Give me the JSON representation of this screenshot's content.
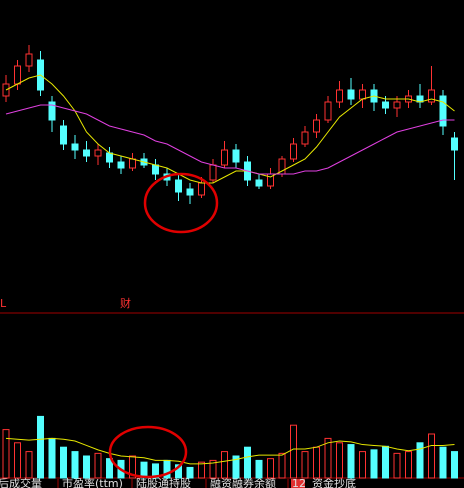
{
  "chart_data": {
    "type": "candlestick",
    "up_color": "#ff3232",
    "down_color": "#54ffff",
    "ylim": [
      0,
      100
    ],
    "candles": [
      {
        "open": 68,
        "close": 72,
        "high": 75,
        "low": 66
      },
      {
        "open": 72,
        "close": 78,
        "high": 80,
        "low": 70
      },
      {
        "open": 78,
        "close": 82,
        "high": 85,
        "low": 76
      },
      {
        "open": 80,
        "close": 70,
        "high": 83,
        "low": 68
      },
      {
        "open": 66,
        "close": 60,
        "high": 68,
        "low": 56
      },
      {
        "open": 58,
        "close": 52,
        "high": 60,
        "low": 50
      },
      {
        "open": 52,
        "close": 50,
        "high": 55,
        "low": 47
      },
      {
        "open": 50,
        "close": 48,
        "high": 53,
        "low": 46
      },
      {
        "open": 48,
        "close": 50,
        "high": 52,
        "low": 45
      },
      {
        "open": 49,
        "close": 46,
        "high": 51,
        "low": 44
      },
      {
        "open": 46,
        "close": 44,
        "high": 48,
        "low": 42
      },
      {
        "open": 44,
        "close": 47,
        "high": 49,
        "low": 43
      },
      {
        "open": 47,
        "close": 45,
        "high": 49,
        "low": 44
      },
      {
        "open": 45,
        "close": 42,
        "high": 47,
        "low": 40
      },
      {
        "open": 42,
        "close": 40,
        "high": 44,
        "low": 38
      },
      {
        "open": 40,
        "close": 36,
        "high": 42,
        "low": 33
      },
      {
        "open": 37,
        "close": 35,
        "high": 39,
        "low": 32
      },
      {
        "open": 35,
        "close": 39,
        "high": 41,
        "low": 34
      },
      {
        "open": 40,
        "close": 45,
        "high": 47,
        "low": 39
      },
      {
        "open": 45,
        "close": 50,
        "high": 53,
        "low": 44
      },
      {
        "open": 50,
        "close": 46,
        "high": 52,
        "low": 44
      },
      {
        "open": 46,
        "close": 40,
        "high": 48,
        "low": 38
      },
      {
        "open": 40,
        "close": 38,
        "high": 42,
        "low": 37
      },
      {
        "open": 38,
        "close": 42,
        "high": 44,
        "low": 37
      },
      {
        "open": 42,
        "close": 47,
        "high": 48,
        "low": 41
      },
      {
        "open": 47,
        "close": 52,
        "high": 54,
        "low": 46
      },
      {
        "open": 52,
        "close": 56,
        "high": 58,
        "low": 51
      },
      {
        "open": 56,
        "close": 60,
        "high": 62,
        "low": 54
      },
      {
        "open": 60,
        "close": 66,
        "high": 68,
        "low": 59
      },
      {
        "open": 66,
        "close": 70,
        "high": 73,
        "low": 64
      },
      {
        "open": 70,
        "close": 67,
        "high": 74,
        "low": 65
      },
      {
        "open": 67,
        "close": 70,
        "high": 72,
        "low": 64
      },
      {
        "open": 70,
        "close": 66,
        "high": 72,
        "low": 63
      },
      {
        "open": 66,
        "close": 64,
        "high": 68,
        "low": 62
      },
      {
        "open": 64,
        "close": 66,
        "high": 68,
        "low": 61
      },
      {
        "open": 66,
        "close": 68,
        "high": 70,
        "low": 64
      },
      {
        "open": 68,
        "close": 66,
        "high": 72,
        "low": 64
      },
      {
        "open": 66,
        "close": 70,
        "high": 78,
        "low": 65
      },
      {
        "open": 68,
        "close": 58,
        "high": 70,
        "low": 55
      },
      {
        "open": 54,
        "close": 50,
        "high": 56,
        "low": 40
      }
    ],
    "ma_lines": [
      {
        "color": "#e8e800",
        "values": [
          70,
          72,
          74,
          75,
          72,
          68,
          63,
          56,
          52,
          49,
          48,
          47,
          46,
          45,
          44,
          42,
          40,
          39,
          39,
          41,
          43,
          43,
          42,
          41,
          43,
          45,
          47,
          51,
          56,
          61,
          64,
          67,
          68,
          67,
          67,
          67,
          66,
          67,
          66,
          63
        ]
      },
      {
        "color": "#e040e0",
        "values": [
          62,
          63,
          64,
          65,
          65,
          64,
          63,
          62,
          60,
          58,
          57,
          56,
          55,
          53,
          52,
          50,
          48,
          46,
          45,
          44,
          44,
          43,
          42,
          42,
          42,
          42,
          43,
          43,
          44,
          46,
          48,
          50,
          52,
          54,
          56,
          57,
          58,
          59,
          60,
          60
        ]
      }
    ],
    "volume": {
      "ylim": [
        0,
        100
      ],
      "values": [
        55,
        40,
        30,
        70,
        45,
        35,
        30,
        25,
        28,
        22,
        20,
        25,
        18,
        16,
        20,
        15,
        12,
        18,
        20,
        30,
        25,
        35,
        20,
        22,
        28,
        60,
        30,
        35,
        45,
        40,
        38,
        30,
        32,
        36,
        28,
        30,
        40,
        50,
        35,
        30
      ],
      "ma": {
        "color": "#e8e800",
        "values": [
          45,
          44,
          43,
          44,
          45,
          44,
          42,
          37,
          32,
          28,
          25,
          24,
          23,
          20,
          20,
          19,
          16,
          16,
          17,
          19,
          21,
          24,
          26,
          26,
          26,
          33,
          33,
          35,
          40,
          42,
          41,
          38,
          37,
          36,
          33,
          31,
          33,
          37,
          37,
          38
        ]
      }
    }
  },
  "markers": {
    "left": "L",
    "fin": "财"
  },
  "tabs": [
    "后成交量",
    "市盈率(ttm)",
    "陆股通持股",
    "融资融券余额",
    "12",
    "资金抄底"
  ]
}
